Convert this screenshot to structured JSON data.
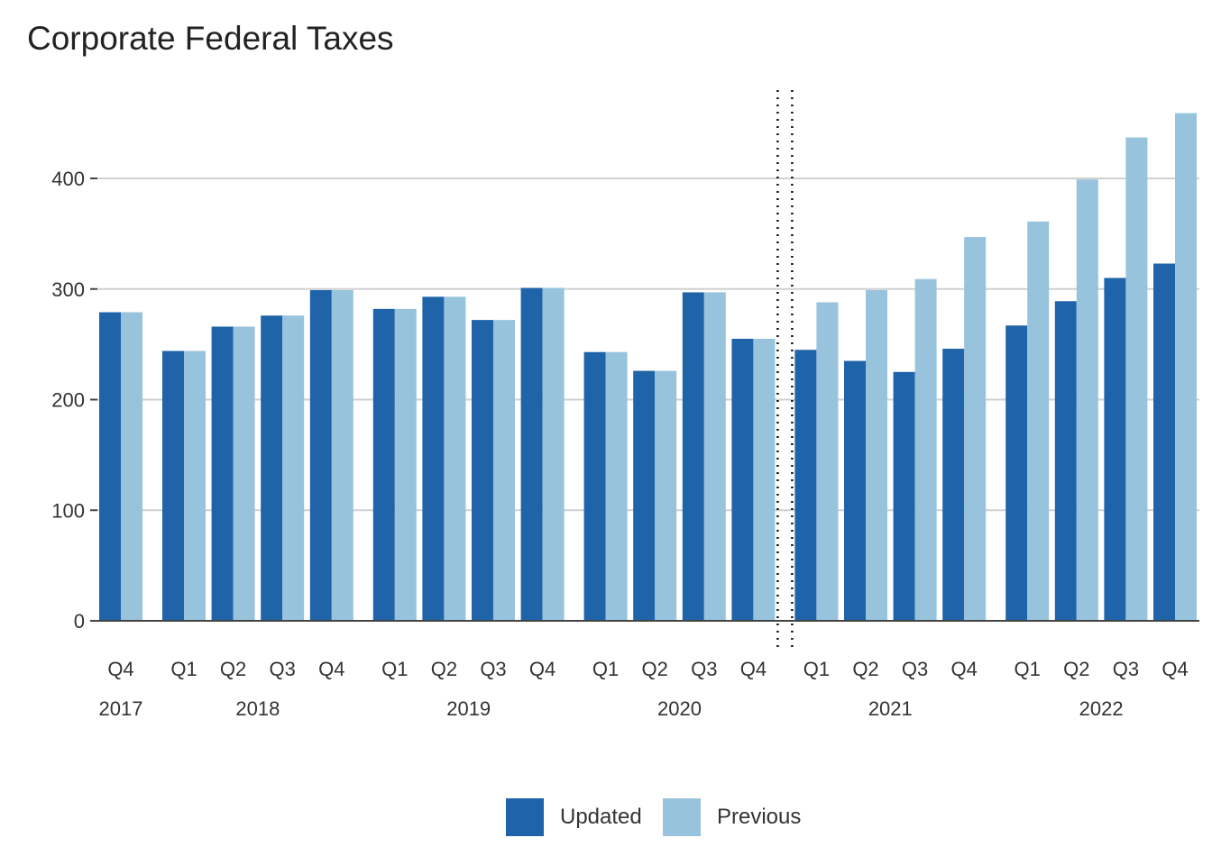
{
  "title": "Corporate Federal Taxes",
  "colors": {
    "updated": "#1f63a8",
    "previous": "#97c3dd",
    "grid": "#d0d0d0",
    "axis": "#444444"
  },
  "chart_data": {
    "type": "bar",
    "title": "Corporate Federal Taxes",
    "xlabel": "",
    "ylabel": "",
    "ylim": [
      0,
      480
    ],
    "yticks": [
      0,
      100,
      200,
      300,
      400
    ],
    "grid": true,
    "legend_position": "bottom",
    "divider_after": "2020 Q4",
    "categories": [
      {
        "year": "2017",
        "quarter": "Q4"
      },
      {
        "year": "2018",
        "quarter": "Q1"
      },
      {
        "year": "2018",
        "quarter": "Q2"
      },
      {
        "year": "2018",
        "quarter": "Q3"
      },
      {
        "year": "2018",
        "quarter": "Q4"
      },
      {
        "year": "2019",
        "quarter": "Q1"
      },
      {
        "year": "2019",
        "quarter": "Q2"
      },
      {
        "year": "2019",
        "quarter": "Q3"
      },
      {
        "year": "2019",
        "quarter": "Q4"
      },
      {
        "year": "2020",
        "quarter": "Q1"
      },
      {
        "year": "2020",
        "quarter": "Q2"
      },
      {
        "year": "2020",
        "quarter": "Q3"
      },
      {
        "year": "2020",
        "quarter": "Q4"
      },
      {
        "year": "2021",
        "quarter": "Q1"
      },
      {
        "year": "2021",
        "quarter": "Q2"
      },
      {
        "year": "2021",
        "quarter": "Q3"
      },
      {
        "year": "2021",
        "quarter": "Q4"
      },
      {
        "year": "2022",
        "quarter": "Q1"
      },
      {
        "year": "2022",
        "quarter": "Q2"
      },
      {
        "year": "2022",
        "quarter": "Q3"
      },
      {
        "year": "2022",
        "quarter": "Q4"
      }
    ],
    "years": [
      "2017",
      "2018",
      "2019",
      "2020",
      "2021",
      "2022"
    ],
    "series": [
      {
        "name": "Updated",
        "values": [
          279,
          244,
          266,
          276,
          299,
          282,
          293,
          272,
          301,
          243,
          226,
          297,
          255,
          245,
          235,
          225,
          246,
          267,
          289,
          310,
          323
        ]
      },
      {
        "name": "Previous",
        "values": [
          279,
          244,
          266,
          276,
          299,
          282,
          293,
          272,
          301,
          243,
          226,
          297,
          255,
          288,
          299,
          309,
          347,
          361,
          399,
          437,
          459
        ]
      }
    ]
  }
}
